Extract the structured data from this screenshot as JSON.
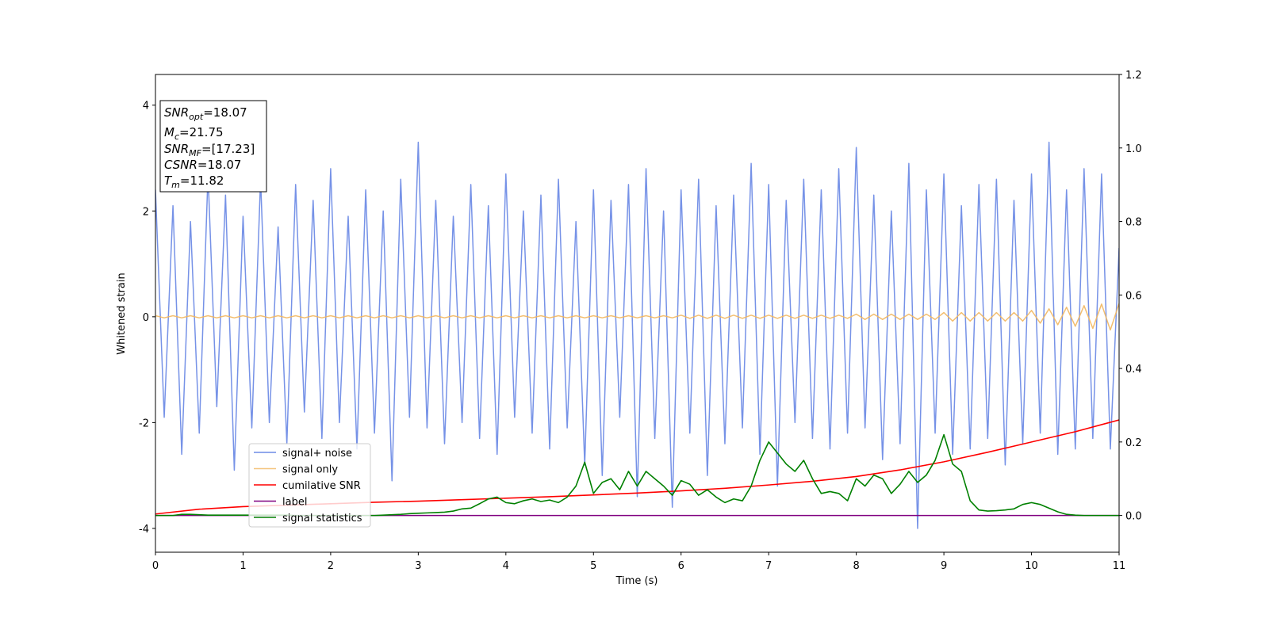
{
  "chart_data": {
    "type": "line",
    "xlabel": "Time (s)",
    "ylabel": "Whitened strain",
    "xlim": [
      0,
      11
    ],
    "ylim": [
      -4.45,
      4.58
    ],
    "y2lim": [
      -0.1,
      1.2
    ],
    "xticks": [
      0,
      1,
      2,
      3,
      4,
      5,
      6,
      7,
      8,
      9,
      10,
      11
    ],
    "yticks": [
      -4,
      -2,
      0,
      2,
      4
    ],
    "y2ticks": [
      {
        "value": 0,
        "label": "0.0"
      },
      0.2,
      0.4,
      0.6,
      0.8,
      {
        "value": 1,
        "label": "1.0"
      },
      1.2
    ],
    "legend": "lower left",
    "annotations": [
      {
        "symbol": "SNR",
        "subscript": "opt",
        "text": "=18.07"
      },
      {
        "symbol": "M",
        "subscript": "c",
        "text": "=21.75"
      },
      {
        "symbol": "SNR",
        "subscript": "MF",
        "text": "=[17.23]"
      },
      {
        "symbol": "CSNR",
        "text": "=18.07"
      },
      {
        "symbol": "T",
        "subscript": "m",
        "text": "=11.82"
      }
    ],
    "x": [
      0,
      0.1,
      0.2,
      0.3,
      0.4,
      0.5,
      0.6,
      0.7,
      0.8,
      0.9,
      1,
      1.1,
      1.2,
      1.3,
      1.4,
      1.5,
      1.6,
      1.7,
      1.8,
      1.9,
      2,
      2.1,
      2.2,
      2.3,
      2.4,
      2.5,
      2.6,
      2.7,
      2.8,
      2.9,
      3,
      3.1,
      3.2,
      3.3,
      3.4,
      3.5,
      3.6,
      3.7,
      3.8,
      3.9,
      4,
      4.1,
      4.2,
      4.3,
      4.4,
      4.5,
      4.6,
      4.7,
      4.8,
      4.9,
      5,
      5.1,
      5.2,
      5.3,
      5.4,
      5.5,
      5.6,
      5.7,
      5.8,
      5.9,
      6,
      6.1,
      6.2,
      6.3,
      6.4,
      6.5,
      6.6,
      6.7,
      6.8,
      6.9,
      7,
      7.1,
      7.2,
      7.3,
      7.4,
      7.5,
      7.6,
      7.7,
      7.8,
      7.9,
      8,
      8.1,
      8.2,
      8.3,
      8.4,
      8.5,
      8.6,
      8.7,
      8.8,
      8.9,
      9,
      9.1,
      9.2,
      9.3,
      9.4,
      9.5,
      9.6,
      9.7,
      9.8,
      9.9,
      10,
      10.1,
      10.2,
      10.3,
      10.4,
      10.5,
      10.6,
      10.7,
      10.8,
      10.9,
      11
    ],
    "series": [
      {
        "name": "signal+ noise",
        "color": "#6f8ce6",
        "values": [
          2.4,
          -1.9,
          2.1,
          -2.6,
          1.8,
          -2.2,
          2.7,
          -1.7,
          2.3,
          -2.9,
          1.9,
          -2.1,
          2.6,
          -2.0,
          1.7,
          -2.4,
          2.5,
          -1.8,
          2.2,
          -2.3,
          2.8,
          -2.0,
          1.9,
          -2.5,
          2.4,
          -2.2,
          2.0,
          -3.1,
          2.6,
          -1.9,
          3.3,
          -2.1,
          2.2,
          -2.4,
          1.9,
          -2.0,
          2.5,
          -2.3,
          2.1,
          -2.6,
          2.7,
          -1.9,
          2.0,
          -2.2,
          2.3,
          -2.5,
          2.6,
          -2.1,
          1.8,
          -2.8,
          2.4,
          -3.0,
          2.2,
          -1.9,
          2.5,
          -3.4,
          2.8,
          -2.3,
          2.0,
          -3.6,
          2.4,
          -2.2,
          2.6,
          -3.0,
          2.1,
          -2.4,
          2.3,
          -2.1,
          2.9,
          -2.6,
          2.5,
          -3.2,
          2.2,
          -2.0,
          2.6,
          -2.3,
          2.4,
          -2.5,
          2.8,
          -2.2,
          3.2,
          -2.1,
          2.3,
          -2.7,
          2.0,
          -2.4,
          2.9,
          -4.0,
          2.4,
          -2.2,
          2.7,
          -2.6,
          2.1,
          -2.5,
          2.5,
          -2.3,
          2.6,
          -2.8,
          2.2,
          -2.4,
          2.7,
          -2.2,
          3.3,
          -2.6,
          2.4,
          -2.5,
          2.8,
          -2.3,
          2.7,
          -2.5,
          1.3
        ]
      },
      {
        "name": "signal only",
        "color": "#f2b75f",
        "values": [
          0.02,
          -0.02,
          0.02,
          -0.02,
          0.02,
          -0.02,
          0.02,
          -0.02,
          0.02,
          -0.02,
          0.02,
          -0.02,
          0.02,
          -0.02,
          0.02,
          -0.02,
          0.02,
          -0.02,
          0.02,
          -0.02,
          0.02,
          -0.02,
          0.02,
          -0.02,
          0.02,
          -0.02,
          0.02,
          -0.02,
          0.02,
          -0.02,
          0.02,
          -0.02,
          0.02,
          -0.02,
          0.02,
          -0.02,
          0.02,
          -0.02,
          0.02,
          -0.02,
          0.02,
          -0.02,
          0.02,
          -0.02,
          0.02,
          -0.02,
          0.02,
          -0.02,
          0.02,
          -0.02,
          0.02,
          -0.02,
          0.02,
          -0.02,
          0.02,
          -0.02,
          0.02,
          -0.02,
          0.02,
          -0.02,
          0.03,
          -0.03,
          0.03,
          -0.03,
          0.03,
          -0.03,
          0.03,
          -0.03,
          0.03,
          -0.03,
          0.03,
          -0.03,
          0.03,
          -0.03,
          0.03,
          -0.03,
          0.03,
          -0.03,
          0.03,
          -0.03,
          0.05,
          -0.05,
          0.05,
          -0.05,
          0.05,
          -0.05,
          0.05,
          -0.05,
          0.05,
          -0.05,
          0.08,
          -0.08,
          0.08,
          -0.08,
          0.08,
          -0.08,
          0.08,
          -0.08,
          0.08,
          -0.08,
          0.12,
          -0.12,
          0.15,
          -0.15,
          0.18,
          -0.18,
          0.21,
          -0.22,
          0.24,
          -0.25,
          0.25
        ]
      },
      {
        "name": "cumilative SNR",
        "color": "#ff0000",
        "axis": "y2",
        "x": [
          0,
          0.5,
          1,
          1.5,
          2,
          2.5,
          3,
          3.5,
          4,
          4.5,
          5,
          5.5,
          6,
          6.5,
          7,
          7.5,
          8,
          8.5,
          9,
          9.5,
          10,
          10.5,
          11
        ],
        "values": [
          0.004,
          0.017,
          0.024,
          0.028,
          0.032,
          0.036,
          0.039,
          0.043,
          0.047,
          0.051,
          0.056,
          0.061,
          0.067,
          0.074,
          0.083,
          0.093,
          0.106,
          0.124,
          0.146,
          0.172,
          0.2,
          0.228,
          0.26
        ]
      },
      {
        "name": "label",
        "color": "#800080",
        "axis": "y2",
        "x": [
          0,
          11
        ],
        "values": [
          0,
          0
        ]
      },
      {
        "name": "signal statistics",
        "color": "#008000",
        "axis": "y2",
        "values": [
          0,
          0,
          0,
          0.003,
          0.003,
          0.002,
          0.001,
          0.001,
          0.001,
          0.001,
          0.001,
          0.001,
          0.001,
          0.001,
          0.001,
          0.001,
          0,
          0,
          0,
          0,
          0,
          0,
          0,
          0,
          0,
          0,
          0.001,
          0.002,
          0.003,
          0.005,
          0.006,
          0.007,
          0.008,
          0.009,
          0.012,
          0.018,
          0.02,
          0.032,
          0.045,
          0.05,
          0.035,
          0.032,
          0.04,
          0.045,
          0.038,
          0.042,
          0.035,
          0.05,
          0.08,
          0.145,
          0.06,
          0.09,
          0.1,
          0.07,
          0.12,
          0.08,
          0.12,
          0.1,
          0.08,
          0.055,
          0.095,
          0.085,
          0.055,
          0.07,
          0.05,
          0.035,
          0.045,
          0.04,
          0.08,
          0.15,
          0.2,
          0.17,
          0.14,
          0.12,
          0.15,
          0.1,
          0.06,
          0.065,
          0.06,
          0.04,
          0.1,
          0.08,
          0.11,
          0.1,
          0.06,
          0.085,
          0.12,
          0.09,
          0.11,
          0.15,
          0.22,
          0.14,
          0.12,
          0.04,
          0.015,
          0.012,
          0.013,
          0.015,
          0.018,
          0.03,
          0.035,
          0.03,
          0.02,
          0.01,
          0.003,
          0.001,
          0,
          0,
          0,
          0,
          0
        ]
      }
    ]
  }
}
